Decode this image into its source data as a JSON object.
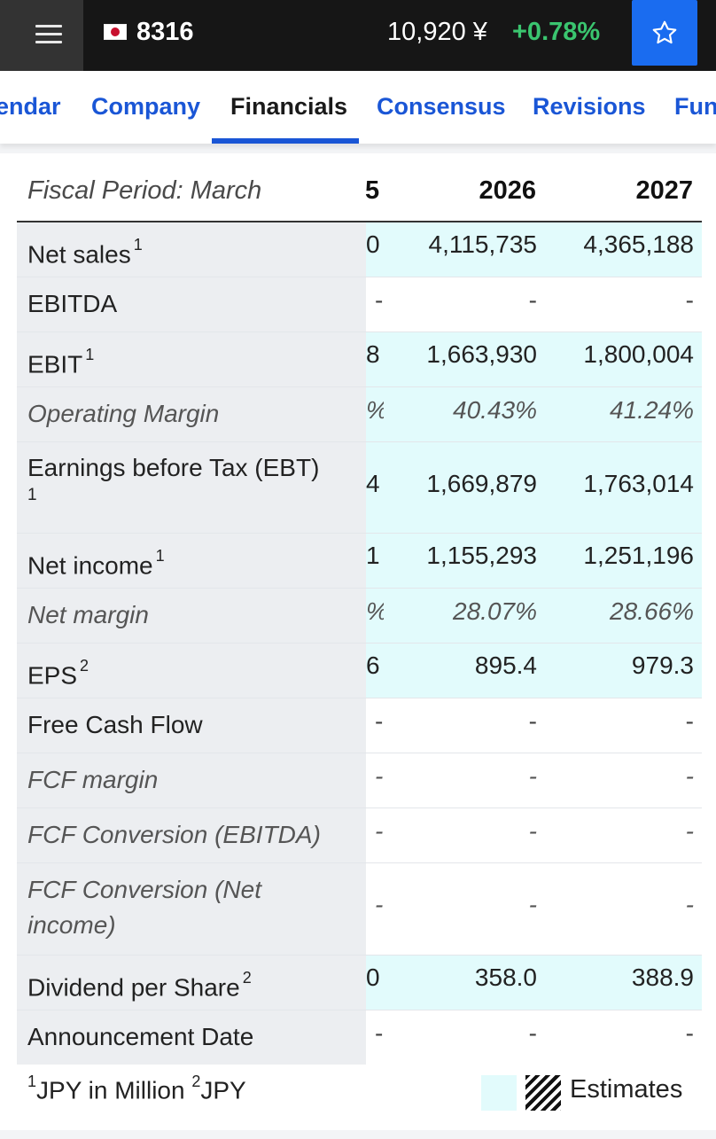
{
  "header": {
    "ticker": "8316",
    "price": "10,920 ¥",
    "change": "+0.78%"
  },
  "tabs": [
    {
      "label": "endar"
    },
    {
      "label": "Company"
    },
    {
      "label": "Financials"
    },
    {
      "label": "Consensus"
    },
    {
      "label": "Revisions"
    },
    {
      "label": "Fun"
    }
  ],
  "table": {
    "period_label": "Fiscal Period: March",
    "col_partial": "5",
    "col_2026": "2026",
    "col_2027": "2027",
    "rows": [
      {
        "label": "Net sales",
        "sup": "1",
        "partial": "0",
        "v2026": "4,115,735",
        "v2027": "4,365,188"
      },
      {
        "label": "EBITDA",
        "sup": "",
        "partial": "-",
        "v2026": "-",
        "v2027": "-"
      },
      {
        "label": "EBIT",
        "sup": "1",
        "partial": "8",
        "v2026": "1,663,930",
        "v2027": "1,800,004"
      },
      {
        "label": "Operating Margin",
        "sup": "",
        "partial": "%",
        "v2026": "40.43%",
        "v2027": "41.24%"
      },
      {
        "label": "Earnings before Tax (EBT)",
        "sup": "1",
        "partial": "4",
        "v2026": "1,669,879",
        "v2027": "1,763,014"
      },
      {
        "label": "Net income",
        "sup": "1",
        "partial": "1",
        "v2026": "1,155,293",
        "v2027": "1,251,196"
      },
      {
        "label": "Net margin",
        "sup": "",
        "partial": "%",
        "v2026": "28.07%",
        "v2027": "28.66%"
      },
      {
        "label": "EPS",
        "sup": "2",
        "partial": "6",
        "v2026": "895.4",
        "v2027": "979.3"
      },
      {
        "label": "Free Cash Flow",
        "sup": "",
        "partial": "-",
        "v2026": "-",
        "v2027": "-"
      },
      {
        "label": "FCF margin",
        "sup": "",
        "partial": "-",
        "v2026": "-",
        "v2027": "-"
      },
      {
        "label": "FCF Conversion (EBITDA)",
        "sup": "",
        "partial": "-",
        "v2026": "-",
        "v2027": "-"
      },
      {
        "label": "FCF Conversion (Net income)",
        "sup": "",
        "partial": "-",
        "v2026": "-",
        "v2027": "-"
      },
      {
        "label": "Dividend per Share",
        "sup": "2",
        "partial": "0",
        "v2026": "358.0",
        "v2027": "388.9"
      },
      {
        "label": "Announcement Date",
        "sup": "",
        "partial": "-",
        "v2026": "-",
        "v2027": "-"
      }
    ]
  },
  "footer": {
    "note_sup1": "1",
    "note_unit1": "JPY in Million",
    "note_sup2": "2",
    "note_unit2": "JPY",
    "legend_label": "Estimates"
  },
  "colors": {
    "accent": "#1a56d6",
    "positive": "#3ac56f",
    "estimate_bg": "#e2fbfc",
    "label_bg": "#eceef1"
  }
}
